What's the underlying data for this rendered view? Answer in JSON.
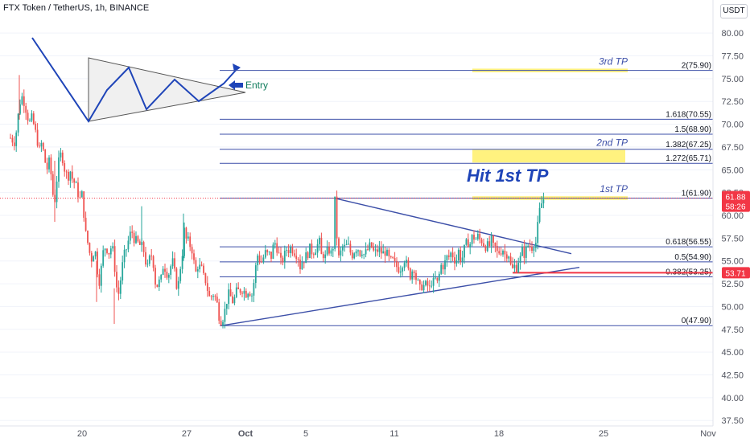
{
  "header": {
    "symbol_title": "FTX Token / TetherUS, 1h, BINANCE",
    "currency": "USDT"
  },
  "colors": {
    "up": "#26a69a",
    "down": "#ef5350",
    "fib": "#3c4fa8",
    "zone": "#ffeb3b",
    "annotation": "#1e44b8",
    "badge_red": "#f23645",
    "grid": "#f0f3fa",
    "axis_text": "#50535e",
    "entry_green": "#0f7b5b"
  },
  "chart_data": {
    "type": "candlestick",
    "y_axis": {
      "ylim": [
        36.9,
        83.1
      ],
      "side": "right",
      "ticks": [
        "80.00",
        "77.50",
        "75.00",
        "72.50",
        "70.00",
        "67.50",
        "65.00",
        "62.50",
        "60.00",
        "57.50",
        "55.00",
        "52.50",
        "50.00",
        "47.50",
        "45.00",
        "42.50",
        "40.00",
        "37.50"
      ]
    },
    "x_axis": {
      "ticks": [
        "20",
        "27",
        "Oct",
        "5",
        "11",
        "18",
        "25",
        "Nov"
      ]
    },
    "price_path": [
      [
        13,
        68.5
      ],
      [
        19,
        68.0
      ],
      [
        21,
        70.0
      ],
      [
        24,
        71.8
      ],
      [
        26,
        73.2
      ],
      [
        28,
        72.9
      ],
      [
        30,
        72.5
      ],
      [
        32,
        71.8
      ],
      [
        34,
        70.9
      ],
      [
        37,
        70.2
      ],
      [
        40,
        70.7
      ],
      [
        43,
        69.5
      ],
      [
        46,
        68.4
      ],
      [
        49,
        67.1
      ],
      [
        52,
        68.0
      ],
      [
        55,
        66.4
      ],
      [
        58,
        65.0
      ],
      [
        61,
        65.8
      ],
      [
        64,
        64.2
      ],
      [
        66,
        62.1
      ],
      [
        67,
        61.0
      ],
      [
        69,
        62.3
      ],
      [
        71,
        64.4
      ],
      [
        74,
        66.5
      ],
      [
        77,
        66.7
      ],
      [
        80,
        65.2
      ],
      [
        84,
        64.1
      ],
      [
        87,
        65.0
      ],
      [
        90,
        64.0
      ],
      [
        93,
        63.5
      ],
      [
        96,
        62.8
      ],
      [
        98,
        62.0
      ],
      [
        100,
        61.7
      ],
      [
        102,
        62.3
      ],
      [
        104,
        60.5
      ],
      [
        105,
        59.2
      ],
      [
        107,
        57.6
      ],
      [
        109,
        57.0
      ],
      [
        111,
        56.0
      ],
      [
        114,
        55.2
      ],
      [
        117,
        56.2
      ],
      [
        119,
        55.8
      ],
      [
        121,
        54.0
      ],
      [
        123,
        52.7
      ],
      [
        125,
        53.5
      ],
      [
        127,
        55.2
      ],
      [
        129,
        56.4
      ],
      [
        132,
        56.6
      ],
      [
        135,
        55.9
      ],
      [
        137,
        56.2
      ],
      [
        139,
        56.8
      ],
      [
        141,
        55.7
      ],
      [
        143,
        53.9
      ],
      [
        145,
        52.1
      ],
      [
        147,
        51.2
      ],
      [
        149,
        52.4
      ],
      [
        151,
        53.8
      ],
      [
        153,
        55.0
      ],
      [
        155,
        55.8
      ],
      [
        158,
        56.6
      ],
      [
        161,
        57.8
      ],
      [
        164,
        58.2
      ],
      [
        167,
        57.4
      ],
      [
        170,
        57.0
      ],
      [
        172,
        56.9
      ],
      [
        175,
        56.6
      ],
      [
        178,
        56.4
      ],
      [
        180,
        55.4
      ],
      [
        183,
        54.0
      ],
      [
        185,
        55.0
      ],
      [
        188,
        55.7
      ],
      [
        191,
        54.6
      ],
      [
        193,
        52.7
      ],
      [
        195,
        52.3
      ],
      [
        198,
        52.7
      ],
      [
        201,
        53.1
      ],
      [
        203,
        54.8
      ],
      [
        206,
        54.0
      ],
      [
        209,
        53.4
      ],
      [
        212,
        54.4
      ],
      [
        215,
        54.9
      ],
      [
        218,
        53.0
      ],
      [
        221,
        51.8
      ],
      [
        223,
        53.6
      ],
      [
        225,
        54.9
      ],
      [
        227,
        56.2
      ],
      [
        229,
        58.3
      ],
      [
        231,
        57.4
      ],
      [
        234,
        57.1
      ],
      [
        237,
        56.6
      ],
      [
        239,
        56.2
      ],
      [
        241,
        54.8
      ],
      [
        243,
        53.5
      ],
      [
        245,
        54.6
      ],
      [
        248,
        54.3
      ],
      [
        251,
        54.0
      ],
      [
        253,
        53.2
      ],
      [
        256,
        52.8
      ],
      [
        259,
        51.3
      ],
      [
        261,
        50.8
      ],
      [
        263,
        51.2
      ],
      [
        265,
        51.4
      ],
      [
        268,
        50.9
      ],
      [
        270,
        50.2
      ],
      [
        272,
        49.1
      ],
      [
        274,
        48.6
      ],
      [
        276,
        48.4
      ],
      [
        278,
        49.2
      ],
      [
        280,
        49.7
      ],
      [
        282,
        50.8
      ],
      [
        284,
        51.3
      ],
      [
        287,
        51.0
      ],
      [
        290,
        50.4
      ],
      [
        293,
        51.4
      ],
      [
        295,
        51.8
      ],
      [
        297,
        51.6
      ],
      [
        300,
        52.0
      ],
      [
        303,
        51.8
      ],
      [
        305,
        51.2
      ],
      [
        307,
        51.9
      ],
      [
        310,
        51.7
      ],
      [
        313,
        51.3
      ],
      [
        315,
        52.4
      ],
      [
        317,
        53.6
      ],
      [
        319,
        55.4
      ],
      [
        321,
        55.8
      ],
      [
        323,
        55.1
      ],
      [
        325,
        54.9
      ],
      [
        327,
        55.3
      ],
      [
        329,
        55.7
      ],
      [
        331,
        56.1
      ],
      [
        333,
        55.4
      ],
      [
        335,
        55.8
      ],
      [
        337,
        55.5
      ],
      [
        339,
        56.4
      ],
      [
        341,
        57.0
      ],
      [
        343,
        56.9
      ],
      [
        345,
        56.2
      ],
      [
        347,
        55.5
      ],
      [
        349,
        54.8
      ],
      [
        351,
        55.1
      ],
      [
        353,
        55.4
      ],
      [
        355,
        56.0
      ],
      [
        357,
        56.5
      ],
      [
        359,
        56.2
      ],
      [
        361,
        56.4
      ],
      [
        364,
        56.3
      ],
      [
        367,
        55.9
      ],
      [
        370,
        55.7
      ],
      [
        373,
        54.4
      ],
      [
        376,
        55.1
      ],
      [
        379,
        55.3
      ],
      [
        382,
        55.8
      ],
      [
        385,
        56.3
      ],
      [
        388,
        56.0
      ],
      [
        391,
        56.2
      ],
      [
        394,
        56.7
      ],
      [
        397,
        57.0
      ],
      [
        399,
        55.4
      ],
      [
        401,
        56.2
      ],
      [
        403,
        55.1
      ],
      [
        405,
        55.6
      ],
      [
        408,
        56.3
      ],
      [
        411,
        56.0
      ],
      [
        413,
        55.0
      ],
      [
        414,
        57.0
      ],
      [
        415,
        59.4
      ],
      [
        416,
        61.8
      ],
      [
        417,
        60.4
      ],
      [
        418,
        58.6
      ],
      [
        419,
        57.1
      ],
      [
        421,
        55.3
      ],
      [
        423,
        55.8
      ],
      [
        426,
        56.6
      ],
      [
        429,
        56.4
      ],
      [
        432,
        56.8
      ],
      [
        435,
        56.0
      ],
      [
        438,
        55.7
      ],
      [
        441,
        56.3
      ],
      [
        444,
        56.6
      ],
      [
        447,
        55.9
      ],
      [
        450,
        56.2
      ],
      [
        452,
        55.7
      ],
      [
        455,
        55.9
      ],
      [
        458,
        56.4
      ],
      [
        461,
        56.7
      ],
      [
        464,
        56.0
      ],
      [
        467,
        55.9
      ],
      [
        470,
        56.3
      ],
      [
        473,
        56.0
      ],
      [
        476,
        55.8
      ],
      [
        479,
        56.1
      ],
      [
        482,
        55.4
      ],
      [
        485,
        54.9
      ],
      [
        488,
        55.0
      ],
      [
        491,
        54.5
      ],
      [
        494,
        54.3
      ],
      [
        497,
        54.1
      ],
      [
        500,
        54.8
      ],
      [
        503,
        55.3
      ],
      [
        506,
        54.3
      ],
      [
        508,
        53.7
      ],
      [
        510,
        53.4
      ],
      [
        512,
        53.9
      ],
      [
        514,
        54.6
      ],
      [
        516,
        53.5
      ],
      [
        518,
        52.7
      ],
      [
        520,
        52.4
      ],
      [
        522,
        51.8
      ],
      [
        524,
        52.3
      ],
      [
        526,
        52.4
      ],
      [
        528,
        51.9
      ],
      [
        530,
        52.7
      ],
      [
        532,
        52.1
      ],
      [
        534,
        51.9
      ],
      [
        536,
        52.8
      ],
      [
        538,
        52.3
      ],
      [
        540,
        53.3
      ],
      [
        542,
        52.6
      ],
      [
        544,
        52.5
      ],
      [
        546,
        53.6
      ],
      [
        548,
        54.5
      ],
      [
        550,
        54.3
      ],
      [
        552,
        55.0
      ],
      [
        554,
        54.6
      ],
      [
        556,
        55.7
      ],
      [
        558,
        55.4
      ],
      [
        560,
        55.8
      ],
      [
        562,
        56.1
      ],
      [
        564,
        54.6
      ],
      [
        566,
        55.8
      ],
      [
        568,
        54.9
      ],
      [
        570,
        56.2
      ],
      [
        572,
        55.3
      ],
      [
        574,
        55.2
      ],
      [
        576,
        55.9
      ],
      [
        578,
        56.6
      ],
      [
        580,
        56.9
      ],
      [
        582,
        57.1
      ],
      [
        584,
        56.8
      ],
      [
        586,
        57.6
      ],
      [
        588,
        57.5
      ],
      [
        590,
        57.7
      ],
      [
        592,
        57.3
      ],
      [
        594,
        57.7
      ],
      [
        596,
        57.3
      ],
      [
        598,
        57.3
      ],
      [
        600,
        57.2
      ],
      [
        602,
        56.6
      ],
      [
        604,
        56.7
      ],
      [
        606,
        56.6
      ],
      [
        608,
        56.6
      ],
      [
        610,
        57.4
      ],
      [
        612,
        56.7
      ],
      [
        614,
        56.3
      ],
      [
        616,
        56.5
      ],
      [
        618,
        55.8
      ],
      [
        620,
        56.0
      ],
      [
        622,
        56.1
      ],
      [
        624,
        56.4
      ],
      [
        626,
        56.2
      ],
      [
        628,
        55.5
      ],
      [
        630,
        55.9
      ],
      [
        632,
        55.9
      ],
      [
        634,
        54.7
      ],
      [
        636,
        53.9
      ],
      [
        638,
        54.2
      ],
      [
        640,
        54.5
      ],
      [
        642,
        54.3
      ],
      [
        644,
        55.1
      ],
      [
        646,
        55.0
      ],
      [
        648,
        55.9
      ],
      [
        650,
        56.3
      ],
      [
        652,
        55.6
      ],
      [
        654,
        56.3
      ],
      [
        656,
        56.7
      ],
      [
        658,
        56.8
      ],
      [
        660,
        56.3
      ],
      [
        662,
        56.8
      ],
      [
        664,
        57.1
      ],
      [
        666,
        57.0
      ],
      [
        668,
        58.6
      ],
      [
        670,
        60.2
      ],
      [
        672,
        61.0
      ],
      [
        674,
        61.6
      ],
      [
        676,
        61.88
      ]
    ],
    "levels": [
      {
        "label": "2(75.90)",
        "value": 75.9,
        "x0": 273,
        "x1": 886
      },
      {
        "label": "1.618(70.55)",
        "value": 70.55,
        "x0": 273,
        "x1": 886
      },
      {
        "label": "1.5(68.90)",
        "value": 68.9,
        "x0": 273,
        "x1": 886
      },
      {
        "label": "1.382(67.25)",
        "value": 67.25,
        "x0": 273,
        "x1": 886
      },
      {
        "label": "1.272(65.71)",
        "value": 65.71,
        "x0": 273,
        "x1": 886
      },
      {
        "label": "1(61.90)",
        "value": 61.9,
        "x0": 273,
        "x1": 886
      },
      {
        "label": "0.618(56.55)",
        "value": 56.55,
        "x0": 273,
        "x1": 886
      },
      {
        "label": "0.5(54.90)",
        "value": 54.9,
        "x0": 273,
        "x1": 886
      },
      {
        "label": "0.382(53.25)",
        "value": 53.25,
        "x0": 273,
        "x1": 886
      },
      {
        "label": "0(47.90)",
        "value": 47.9,
        "x0": 273,
        "x1": 886
      }
    ],
    "tp_zones": [
      {
        "label": "3rd TP",
        "top": 76.1,
        "bottom": 75.7,
        "x0": 587,
        "x1": 780
      },
      {
        "label": "2nd TP",
        "top": 67.2,
        "bottom": 65.8,
        "x0": 587,
        "x1": 777
      },
      {
        "label": "1st TP",
        "top": 62.1,
        "bottom": 61.7,
        "x0": 587,
        "x1": 780
      }
    ],
    "trendlines": [
      {
        "from": [
          415,
          61.9
        ],
        "to": [
          710,
          55.8
        ]
      },
      {
        "from": [
          275,
          47.9
        ],
        "to": [
          720,
          54.3
        ]
      }
    ],
    "support_line": {
      "value": 53.71,
      "x0": 637,
      "x1": 886
    },
    "current_price_line": {
      "value": 61.88
    },
    "badges": [
      {
        "value": 61.88,
        "text": "61.88",
        "subtext": "58:26"
      },
      {
        "value": 53.71,
        "text": "53.71"
      }
    ],
    "annotations": {
      "hit_text": "Hit 1st TP",
      "entry_text": "Entry",
      "schematic_zigzag": [
        [
          40,
          47
        ],
        [
          110,
          151
        ],
        [
          133,
          112
        ],
        [
          160,
          84
        ],
        [
          182,
          136
        ],
        [
          217,
          99
        ],
        [
          247,
          126
        ],
        [
          278,
          104
        ],
        [
          297,
          83
        ]
      ],
      "schematic_triangle": [
        [
          110,
          72
        ],
        [
          110,
          151
        ],
        [
          305,
          115
        ]
      ]
    }
  }
}
